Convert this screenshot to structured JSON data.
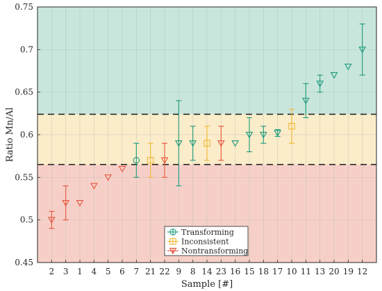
{
  "chart_data": {
    "type": "scatter",
    "title": "",
    "xlabel": "Sample [#]",
    "ylabel": "Ratio Mn/Al",
    "ylim": [
      0.45,
      0.75
    ],
    "yticks": [
      0.45,
      0.5,
      0.55,
      0.6,
      0.65,
      0.7,
      0.75
    ],
    "ytick_labels": [
      "0.45",
      "0.5",
      "0.55",
      "0.6",
      "0.65",
      "0.7",
      "0.75"
    ],
    "categories": [
      "2",
      "3",
      "1",
      "4",
      "5",
      "6",
      "7",
      "21",
      "22",
      "9",
      "8",
      "14",
      "23",
      "16",
      "15",
      "18",
      "17",
      "10",
      "11",
      "13",
      "20",
      "19",
      "12"
    ],
    "grid": true,
    "legend_position": "bottom-center",
    "thresholds": [
      0.565,
      0.624
    ],
    "regions": [
      {
        "from": 0.45,
        "to": 0.565,
        "color": "#f6d0c8"
      },
      {
        "from": 0.565,
        "to": 0.624,
        "color": "#fbecca"
      },
      {
        "from": 0.624,
        "to": 0.75,
        "color": "#c9e6dc"
      }
    ],
    "series": [
      {
        "name": "Transforming",
        "marker": "circle",
        "color": "#1a9a7c",
        "points": [
          {
            "x": "7",
            "y": 0.57,
            "low": 0.55,
            "high": 0.59
          }
        ]
      },
      {
        "name": "Inconsistent",
        "marker": "square",
        "color": "#f2b632",
        "points": [
          {
            "x": "21",
            "y": 0.57,
            "low": 0.55,
            "high": 0.59
          },
          {
            "x": "14",
            "y": 0.59,
            "low": 0.57,
            "high": 0.61
          },
          {
            "x": "10",
            "y": 0.61,
            "low": 0.59,
            "high": 0.63
          }
        ]
      },
      {
        "name": "Nontransforming",
        "marker": "triangle-down",
        "color": "#e8543b",
        "points": [
          {
            "x": "2",
            "y": 0.5,
            "low": 0.49,
            "high": 0.51
          },
          {
            "x": "3",
            "y": 0.52,
            "low": 0.5,
            "high": 0.54
          },
          {
            "x": "1",
            "y": 0.52,
            "low": 0.52,
            "high": 0.52
          },
          {
            "x": "4",
            "y": 0.54,
            "low": 0.54,
            "high": 0.54
          },
          {
            "x": "5",
            "y": 0.55,
            "low": 0.55,
            "high": 0.55
          },
          {
            "x": "6",
            "y": 0.56,
            "low": 0.56,
            "high": 0.56
          },
          {
            "x": "22",
            "y": 0.57,
            "low": 0.55,
            "high": 0.59
          },
          {
            "x": "23",
            "y": 0.59,
            "low": 0.57,
            "high": 0.61
          }
        ]
      },
      {
        "name": "",
        "marker": "triangle-down",
        "color": "#1a9a7c",
        "points": [
          {
            "x": "9",
            "y": 0.59,
            "low": 0.54,
            "high": 0.64
          },
          {
            "x": "8",
            "y": 0.59,
            "low": 0.57,
            "high": 0.61
          },
          {
            "x": "16",
            "y": 0.59,
            "low": 0.59,
            "high": 0.59
          },
          {
            "x": "15",
            "y": 0.6,
            "low": 0.58,
            "high": 0.62
          },
          {
            "x": "18",
            "y": 0.6,
            "low": 0.59,
            "high": 0.61
          },
          {
            "x": "17",
            "y": 0.602,
            "low": 0.598,
            "high": 0.606
          },
          {
            "x": "11",
            "y": 0.64,
            "low": 0.62,
            "high": 0.66
          },
          {
            "x": "13",
            "y": 0.66,
            "low": 0.65,
            "high": 0.67
          },
          {
            "x": "20",
            "y": 0.67,
            "low": 0.67,
            "high": 0.67
          },
          {
            "x": "19",
            "y": 0.68,
            "low": 0.68,
            "high": 0.68
          },
          {
            "x": "12",
            "y": 0.7,
            "low": 0.67,
            "high": 0.73
          }
        ]
      }
    ]
  }
}
